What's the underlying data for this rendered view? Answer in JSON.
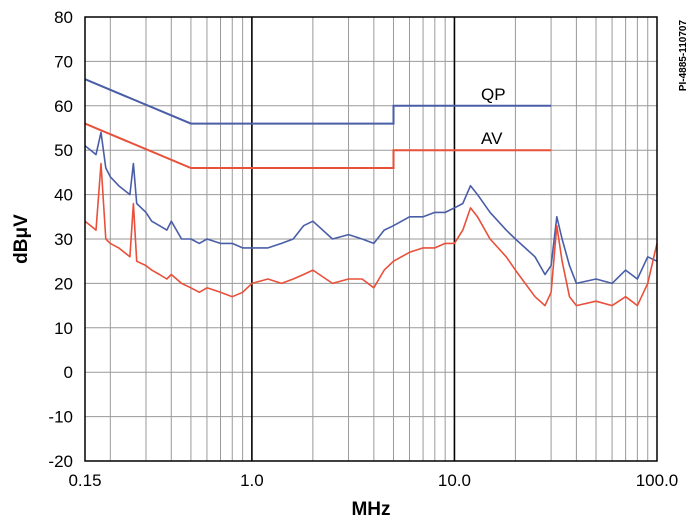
{
  "chart_data": {
    "type": "line",
    "x_scale": "log",
    "xlabel": "MHz",
    "ylabel": "dBμV",
    "xlim": [
      0.15,
      100
    ],
    "ylim": [
      -20,
      80
    ],
    "grid": true,
    "x_ticks": [
      {
        "value": 0.15,
        "label": "0.15"
      },
      {
        "value": 1,
        "label": "1.0"
      },
      {
        "value": 10,
        "label": "10.0"
      },
      {
        "value": 100,
        "label": "100.0"
      }
    ],
    "y_ticks": [
      80,
      70,
      60,
      50,
      40,
      30,
      20,
      10,
      0,
      -10,
      -20
    ],
    "reference_id": "PI-4885-110707",
    "limit_lines": [
      {
        "name": "QP",
        "color": "#4a5ea8",
        "x": [
          0.15,
          0.5,
          0.5,
          5,
          5,
          30
        ],
        "y": [
          66,
          56,
          56,
          56,
          60,
          60
        ]
      },
      {
        "name": "AV",
        "color": "#e8503a",
        "x": [
          0.15,
          0.5,
          0.5,
          5,
          5,
          30
        ],
        "y": [
          56,
          46,
          46,
          46,
          50,
          50
        ]
      }
    ],
    "series": [
      {
        "color": "#4a5ea8",
        "x": [
          0.15,
          0.16,
          0.17,
          0.18,
          0.19,
          0.2,
          0.22,
          0.25,
          0.26,
          0.27,
          0.3,
          0.32,
          0.35,
          0.38,
          0.4,
          0.45,
          0.5,
          0.55,
          0.6,
          0.7,
          0.8,
          0.9,
          1.0,
          1.2,
          1.4,
          1.6,
          1.8,
          2.0,
          2.5,
          3.0,
          3.5,
          4.0,
          4.5,
          5.0,
          6.0,
          7.0,
          8.0,
          9.0,
          10.0,
          11.0,
          12.0,
          13.0,
          15.0,
          18.0,
          20.0,
          25.0,
          28.0,
          30.0,
          32.0,
          34.0,
          37.0,
          40.0,
          50.0,
          60.0,
          70.0,
          80.0,
          90.0,
          100.0
        ],
        "y": [
          51,
          50,
          49,
          54,
          46,
          44,
          42,
          40,
          47,
          38,
          36,
          34,
          33,
          32,
          34,
          30,
          30,
          29,
          30,
          29,
          29,
          28,
          28,
          28,
          29,
          30,
          33,
          34,
          30,
          31,
          30,
          29,
          32,
          33,
          35,
          35,
          36,
          36,
          37,
          38,
          42,
          40,
          36,
          32,
          30,
          26,
          22,
          24,
          35,
          30,
          24,
          20,
          21,
          20,
          23,
          21,
          26,
          25
        ]
      },
      {
        "color": "#e8503a",
        "x": [
          0.15,
          0.16,
          0.17,
          0.18,
          0.19,
          0.2,
          0.22,
          0.25,
          0.26,
          0.27,
          0.3,
          0.32,
          0.35,
          0.38,
          0.4,
          0.45,
          0.5,
          0.55,
          0.6,
          0.7,
          0.8,
          0.9,
          1.0,
          1.2,
          1.4,
          1.6,
          1.8,
          2.0,
          2.5,
          3.0,
          3.5,
          4.0,
          4.5,
          5.0,
          6.0,
          7.0,
          8.0,
          9.0,
          10.0,
          11.0,
          12.0,
          13.0,
          15.0,
          18.0,
          20.0,
          25.0,
          28.0,
          30.0,
          32.0,
          34.0,
          37.0,
          40.0,
          50.0,
          60.0,
          70.0,
          80.0,
          90.0,
          100.0
        ],
        "y": [
          34,
          33,
          32,
          47,
          30,
          29,
          28,
          26,
          38,
          25,
          24,
          23,
          22,
          21,
          22,
          20,
          19,
          18,
          19,
          18,
          17,
          18,
          20,
          21,
          20,
          21,
          22,
          23,
          20,
          21,
          21,
          19,
          23,
          25,
          27,
          28,
          28,
          29,
          29,
          32,
          37,
          35,
          30,
          26,
          23,
          17,
          15,
          18,
          33,
          25,
          17,
          15,
          16,
          15,
          17,
          15,
          20,
          29
        ]
      }
    ]
  }
}
